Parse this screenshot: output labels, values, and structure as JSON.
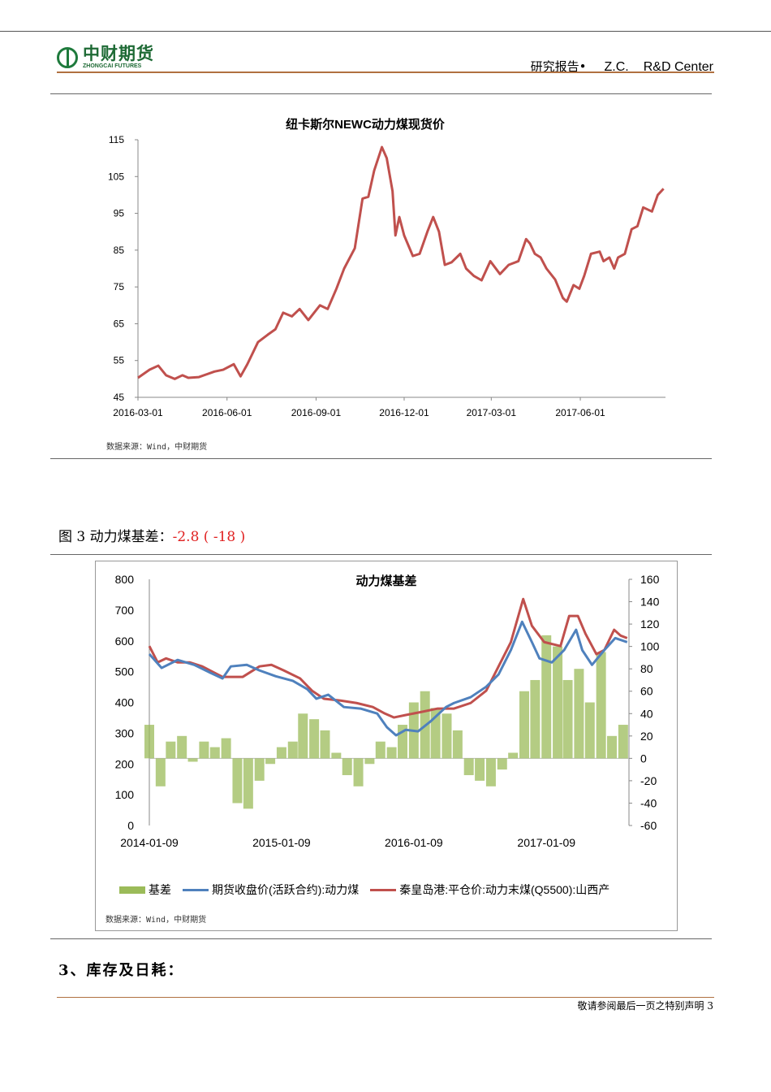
{
  "header": {
    "logo_cn": "中财期货",
    "logo_en": "ZHONGCAI FUTURES",
    "report_label": "研究报告•",
    "zc": "Z.C.",
    "center": "R&D Center"
  },
  "figure3": {
    "label": "图 3 动力煤基差：",
    "value": "-2.8 ( -18 )"
  },
  "section3": {
    "title": "3、库存及日耗："
  },
  "footer": {
    "text": "敬请参阅最后一页之特别声明 3"
  },
  "colors": {
    "red": "#c0504d",
    "blue": "#4f81bd",
    "green": "#9bbb59"
  },
  "chart_data": [
    {
      "type": "line",
      "title": "纽卡斯尔NEWC动力煤现货价",
      "source": "数据来源：Wind，中财期货",
      "xlim": [
        "2016-03-01",
        "2017-08-28"
      ],
      "ylim": [
        45,
        115
      ],
      "yticks": [
        "115",
        "105",
        "95",
        "85",
        "75",
        "65",
        "55",
        "45"
      ],
      "xticks": [
        "2016-03-01",
        "2016-06-01",
        "2016-09-01",
        "2016-12-01",
        "2017-03-01",
        "2017-06-01"
      ],
      "series": [
        {
          "color": "#c0504d",
          "x": [
            "2016-03-01",
            "2016-03-13",
            "2016-03-22",
            "2016-03-30",
            "2016-04-08",
            "2016-04-16",
            "2016-04-22",
            "2016-05-03",
            "2016-05-19",
            "2016-05-28",
            "2016-06-08",
            "2016-06-15",
            "2016-06-22",
            "2016-07-03",
            "2016-07-13",
            "2016-07-21",
            "2016-07-29",
            "2016-08-07",
            "2016-08-15",
            "2016-08-24",
            "2016-09-05",
            "2016-09-13",
            "2016-09-22",
            "2016-09-30",
            "2016-10-11",
            "2016-10-19",
            "2016-10-25",
            "2016-10-31",
            "2016-11-08",
            "2016-11-13",
            "2016-11-19",
            "2016-11-22",
            "2016-11-26",
            "2016-12-01",
            "2016-12-10",
            "2016-12-17",
            "2016-12-25",
            "2016-12-31",
            "2017-01-06",
            "2017-01-12",
            "2017-01-19",
            "2017-01-28",
            "2017-02-03",
            "2017-02-11",
            "2017-02-19",
            "2017-02-28",
            "2017-03-10",
            "2017-03-19",
            "2017-03-29",
            "2017-04-06",
            "2017-04-10",
            "2017-04-15",
            "2017-04-21",
            "2017-04-27",
            "2017-05-06",
            "2017-05-14",
            "2017-05-18",
            "2017-05-25",
            "2017-05-31",
            "2017-06-05",
            "2017-06-12",
            "2017-06-21",
            "2017-06-25",
            "2017-07-01",
            "2017-07-06",
            "2017-07-10",
            "2017-07-17",
            "2017-07-24",
            "2017-07-30",
            "2017-08-05",
            "2017-08-14",
            "2017-08-20",
            "2017-08-26"
          ],
          "y": [
            50.3,
            52.5,
            53.6,
            51,
            50,
            51,
            50.3,
            50.5,
            52,
            52.5,
            54,
            50.7,
            54,
            60,
            62,
            63.5,
            68,
            67,
            69,
            66,
            70,
            69,
            74.5,
            80,
            85.5,
            99,
            99.5,
            106.6,
            113,
            110,
            101,
            89,
            94,
            89,
            83.4,
            84,
            90,
            94,
            90,
            81,
            81.7,
            84,
            80,
            78,
            76.8,
            82,
            78.5,
            81,
            82,
            88,
            86.8,
            84,
            83,
            80,
            77,
            72,
            71,
            75.5,
            74.5,
            78,
            84,
            84.6,
            82,
            83,
            80,
            83,
            84,
            90.7,
            91.5,
            96.6,
            95.5,
            100,
            101.7
          ]
        }
      ]
    },
    {
      "type": "bar+line",
      "title": "动力煤基差",
      "source": "数据来源：Wind，中财期货",
      "xlim": [
        "2014-01-09",
        "2017-08-25"
      ],
      "ylim_left": [
        0,
        800
      ],
      "ylim_right": [
        -60,
        160
      ],
      "yticks_left": [
        "800",
        "700",
        "600",
        "500",
        "400",
        "300",
        "200",
        "100",
        "0"
      ],
      "yticks_right": [
        "160",
        "140",
        "120",
        "100",
        "80",
        "60",
        "40",
        "20",
        "0",
        "-20",
        "-40",
        "-60"
      ],
      "xticks": [
        "2014-01-09",
        "2015-01-09",
        "2016-01-09",
        "2017-01-09"
      ],
      "series": [
        {
          "name": "基差",
          "type": "bar",
          "axis": "right",
          "color": "#9bbb59",
          "x": [
            "2014-01-09",
            "2014-02-09",
            "2014-03-09",
            "2014-04-09",
            "2014-05-09",
            "2014-06-09",
            "2014-07-09",
            "2014-08-09",
            "2014-09-09",
            "2014-10-09",
            "2014-11-09",
            "2014-12-09",
            "2015-01-09",
            "2015-02-09",
            "2015-03-09",
            "2015-04-09",
            "2015-05-09",
            "2015-06-09",
            "2015-07-09",
            "2015-08-09",
            "2015-09-09",
            "2015-10-09",
            "2015-11-09",
            "2015-12-09",
            "2016-01-09",
            "2016-02-09",
            "2016-03-09",
            "2016-04-09",
            "2016-05-09",
            "2016-06-09",
            "2016-07-09",
            "2016-08-09",
            "2016-09-09",
            "2016-10-09",
            "2016-11-09",
            "2016-12-09",
            "2017-01-09",
            "2017-02-09",
            "2017-03-09",
            "2017-04-09",
            "2017-05-09",
            "2017-06-09",
            "2017-07-09",
            "2017-08-09"
          ],
          "y": [
            30,
            -25,
            15,
            20,
            -3,
            15,
            10,
            18,
            -40,
            -45,
            -20,
            -5,
            10,
            15,
            40,
            35,
            25,
            5,
            -15,
            -25,
            -5,
            15,
            10,
            30,
            50,
            60,
            45,
            40,
            25,
            -15,
            -20,
            -25,
            -10,
            5,
            60,
            70,
            110,
            100,
            70,
            80,
            50,
            95,
            20,
            30
          ]
        },
        {
          "name": "期货收盘价(活跃合约):动力煤",
          "type": "line",
          "axis": "left",
          "color": "#4f81bd",
          "x": [
            "2014-01-09",
            "2014-02-12",
            "2014-03-28",
            "2014-05-13",
            "2014-06-27",
            "2014-07-30",
            "2014-08-22",
            "2014-10-05",
            "2014-11-09",
            "2014-12-24",
            "2015-02-09",
            "2015-03-21",
            "2015-04-15",
            "2015-05-18",
            "2015-06-30",
            "2015-08-15",
            "2015-09-30",
            "2015-10-27",
            "2015-11-21",
            "2015-12-18",
            "2016-01-21",
            "2016-02-24",
            "2016-04-07",
            "2016-04-29",
            "2016-06-14",
            "2016-07-27",
            "2016-08-30",
            "2016-10-03",
            "2016-11-03",
            "2016-11-30",
            "2016-12-21",
            "2017-01-24",
            "2017-02-27",
            "2017-04-01",
            "2017-04-18",
            "2017-05-15",
            "2017-06-18",
            "2017-07-18",
            "2017-08-20"
          ],
          "y": [
            557,
            512,
            538,
            522,
            496,
            478,
            517,
            522,
            504,
            485,
            470,
            443,
            412,
            425,
            385,
            380,
            364,
            319,
            293,
            311,
            306,
            338,
            385,
            398,
            417,
            451,
            491,
            570,
            662,
            596,
            543,
            530,
            570,
            636,
            570,
            522,
            570,
            609,
            596
          ]
        },
        {
          "name": "秦皇岛港:平仓价:动力末煤(Q5500):山西产",
          "type": "line",
          "axis": "left",
          "color": "#c0504d",
          "x": [
            "2014-01-09",
            "2014-02-01",
            "2014-02-24",
            "2014-03-28",
            "2014-05-01",
            "2014-06-04",
            "2014-07-08",
            "2014-07-30",
            "2014-09-24",
            "2014-11-09",
            "2014-12-12",
            "2015-01-15",
            "2015-03-01",
            "2015-04-03",
            "2015-05-06",
            "2015-06-21",
            "2015-08-04",
            "2015-09-18",
            "2015-10-21",
            "2015-11-15",
            "2015-12-18",
            "2016-01-30",
            "2016-03-15",
            "2016-04-29",
            "2016-06-14",
            "2016-07-27",
            "2016-08-30",
            "2016-10-03",
            "2016-11-06",
            "2016-11-30",
            "2017-01-03",
            "2017-02-17",
            "2017-03-13",
            "2017-04-06",
            "2017-04-27",
            "2017-05-27",
            "2017-06-18",
            "2017-07-15",
            "2017-08-02",
            "2017-08-20"
          ],
          "y": [
            583,
            530,
            543,
            530,
            530,
            517,
            496,
            483,
            483,
            517,
            522,
            504,
            478,
            438,
            412,
            406,
            398,
            385,
            364,
            351,
            359,
            369,
            380,
            380,
            398,
            438,
            517,
            596,
            736,
            649,
            596,
            583,
            681,
            681,
            623,
            557,
            570,
            636,
            617,
            609
          ]
        }
      ]
    }
  ]
}
